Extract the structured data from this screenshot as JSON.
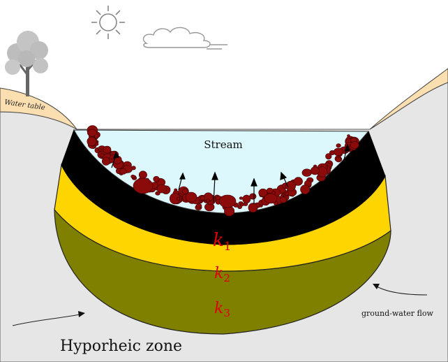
{
  "labels": {
    "water_table": "Water table",
    "stream": "Stream",
    "k1": "k",
    "k1_sub": "1",
    "k2": "k",
    "k2_sub": "2",
    "k3": "k",
    "k3_sub": "3",
    "groundwater_flow": "ground-water flow",
    "hyporheic_zone": "Hyporheic zone"
  },
  "colors": {
    "ground": "#e6e6e6",
    "water_table_band": "#fbdfb0",
    "stream_water": "#dcf8fc",
    "layer_k1": "#000000",
    "layer_k2": "#ffd500",
    "layer_k3": "#7f7f00",
    "pebbles": "#8b0a0a",
    "k_label": "#e00000"
  }
}
